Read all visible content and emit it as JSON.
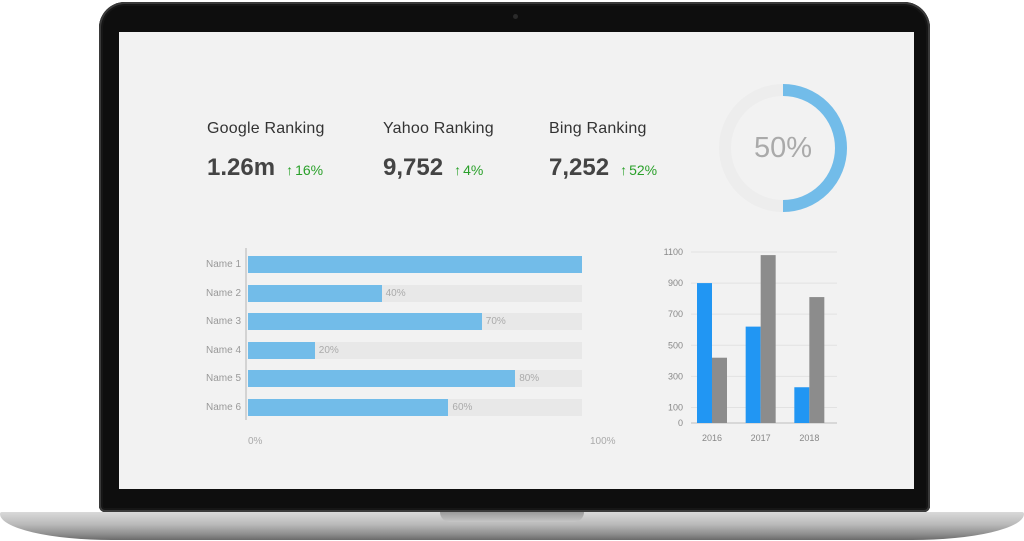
{
  "stats": [
    {
      "title": "Google Ranking",
      "value": "1.26m",
      "change": "16%",
      "trend": "up"
    },
    {
      "title": "Yahoo Ranking",
      "value": "9,752",
      "change": "4%",
      "trend": "up"
    },
    {
      "title": "Bing Ranking",
      "value": "7,252",
      "change": "52%",
      "trend": "up"
    }
  ],
  "colors": {
    "accent_blue": "#72bce9",
    "bar_blue": "#2196f3",
    "bar_gray": "#8c8c8c",
    "track_gray": "#e8e8e8",
    "positive_green": "#2aa02a"
  },
  "chart_data": [
    {
      "type": "pie",
      "subtype": "donut",
      "values": [
        50,
        50
      ],
      "center_label": "50%",
      "colors": [
        "#72bce9",
        "#ededed"
      ]
    },
    {
      "type": "bar",
      "orientation": "horizontal",
      "categories": [
        "Name 1",
        "Name 2",
        "Name 3",
        "Name 4",
        "Name 5",
        "Name 6"
      ],
      "values": [
        100,
        40,
        70,
        20,
        80,
        60
      ],
      "value_labels": [
        "",
        "40%",
        "70%",
        "20%",
        "80%",
        "60%"
      ],
      "xlim": [
        0,
        100
      ],
      "x_ticks": [
        "0%",
        "100%"
      ]
    },
    {
      "type": "bar",
      "categories": [
        "2016",
        "2017",
        "2018"
      ],
      "series": [
        {
          "values": [
            900,
            620,
            230
          ],
          "color": "#2196f3"
        },
        {
          "values": [
            420,
            1080,
            810
          ],
          "color": "#8c8c8c"
        }
      ],
      "ylim": [
        0,
        1100
      ],
      "y_ticks": [
        "0",
        "100",
        "300",
        "500",
        "700",
        "900",
        "1100"
      ],
      "grid": true
    }
  ]
}
